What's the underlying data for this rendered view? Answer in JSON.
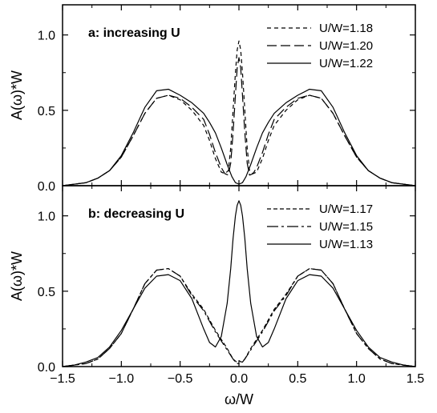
{
  "chart_data": [
    {
      "type": "line",
      "panel_label": "a: increasing U",
      "ylabel": "A(ω)*W",
      "xlabel": "",
      "xlim": [
        -1.5,
        1.5
      ],
      "ylim": [
        0.0,
        1.2
      ],
      "x_ticks": [
        "−1.5",
        "−1.0",
        "−0.5",
        "0.0",
        "0.5",
        "1.0",
        "1.5"
      ],
      "y_ticks": [
        "0.0",
        "0.5",
        "1.0"
      ],
      "grid": false,
      "legend_position": "top-right",
      "series": [
        {
          "name": "U/W=1.18",
          "dash": "5,4",
          "x": [
            -1.5,
            -1.4,
            -1.3,
            -1.2,
            -1.1,
            -1.0,
            -0.9,
            -0.8,
            -0.7,
            -0.6,
            -0.5,
            -0.4,
            -0.3,
            -0.25,
            -0.2,
            -0.15,
            -0.12,
            -0.09,
            -0.07,
            -0.05,
            -0.03,
            -0.015,
            0.0,
            0.015,
            0.03,
            0.05,
            0.07,
            0.09,
            0.12,
            0.15,
            0.2,
            0.25,
            0.3,
            0.4,
            0.5,
            0.6,
            0.7,
            0.8,
            0.9,
            1.0,
            1.1,
            1.2,
            1.3,
            1.4,
            1.5
          ],
          "y": [
            0.0,
            0.01,
            0.02,
            0.05,
            0.1,
            0.19,
            0.33,
            0.48,
            0.58,
            0.6,
            0.57,
            0.5,
            0.4,
            0.3,
            0.18,
            0.09,
            0.08,
            0.1,
            0.25,
            0.5,
            0.75,
            0.9,
            0.96,
            0.9,
            0.75,
            0.5,
            0.25,
            0.1,
            0.08,
            0.09,
            0.18,
            0.3,
            0.4,
            0.5,
            0.57,
            0.6,
            0.58,
            0.48,
            0.33,
            0.19,
            0.1,
            0.05,
            0.02,
            0.01,
            0.0
          ]
        },
        {
          "name": "U/W=1.20",
          "dash": "12,5",
          "x": [
            -1.5,
            -1.4,
            -1.3,
            -1.2,
            -1.1,
            -1.0,
            -0.9,
            -0.8,
            -0.7,
            -0.6,
            -0.5,
            -0.4,
            -0.3,
            -0.25,
            -0.2,
            -0.15,
            -0.12,
            -0.09,
            -0.07,
            -0.05,
            -0.03,
            -0.015,
            0.0,
            0.015,
            0.03,
            0.05,
            0.07,
            0.09,
            0.12,
            0.15,
            0.2,
            0.25,
            0.3,
            0.4,
            0.5,
            0.6,
            0.7,
            0.8,
            0.9,
            1.0,
            1.1,
            1.2,
            1.3,
            1.4,
            1.5
          ],
          "y": [
            0.0,
            0.01,
            0.02,
            0.05,
            0.1,
            0.19,
            0.33,
            0.48,
            0.58,
            0.6,
            0.58,
            0.52,
            0.44,
            0.34,
            0.22,
            0.12,
            0.08,
            0.07,
            0.15,
            0.35,
            0.6,
            0.78,
            0.85,
            0.78,
            0.6,
            0.35,
            0.15,
            0.07,
            0.08,
            0.12,
            0.22,
            0.34,
            0.44,
            0.52,
            0.58,
            0.6,
            0.58,
            0.48,
            0.33,
            0.19,
            0.1,
            0.05,
            0.02,
            0.01,
            0.0
          ]
        },
        {
          "name": "U/W=1.22",
          "dash": "",
          "x": [
            -1.5,
            -1.4,
            -1.3,
            -1.2,
            -1.1,
            -1.0,
            -0.9,
            -0.8,
            -0.7,
            -0.6,
            -0.5,
            -0.4,
            -0.3,
            -0.25,
            -0.2,
            -0.15,
            -0.1,
            -0.06,
            -0.03,
            0.0,
            0.03,
            0.06,
            0.1,
            0.15,
            0.2,
            0.25,
            0.3,
            0.4,
            0.5,
            0.6,
            0.7,
            0.8,
            0.9,
            1.0,
            1.1,
            1.2,
            1.3,
            1.4,
            1.5
          ],
          "y": [
            0.0,
            0.01,
            0.02,
            0.05,
            0.1,
            0.2,
            0.35,
            0.52,
            0.63,
            0.64,
            0.6,
            0.55,
            0.48,
            0.42,
            0.35,
            0.25,
            0.14,
            0.06,
            0.02,
            0.01,
            0.02,
            0.06,
            0.14,
            0.25,
            0.35,
            0.42,
            0.48,
            0.55,
            0.6,
            0.64,
            0.63,
            0.52,
            0.35,
            0.2,
            0.1,
            0.05,
            0.02,
            0.01,
            0.0
          ]
        }
      ]
    },
    {
      "type": "line",
      "panel_label": "b: decreasing U",
      "ylabel": "A(ω)*W",
      "xlabel": "ω/W",
      "xlim": [
        -1.5,
        1.5
      ],
      "ylim": [
        0.0,
        1.2
      ],
      "x_ticks": [
        "−1.5",
        "−1.0",
        "−0.5",
        "0.0",
        "0.5",
        "1.0",
        "1.5"
      ],
      "y_ticks": [
        "0.0",
        "0.5",
        "1.0"
      ],
      "grid": false,
      "legend_position": "top-right",
      "series": [
        {
          "name": "U/W=1.17",
          "dash": "5,3",
          "x": [
            -1.5,
            -1.4,
            -1.3,
            -1.2,
            -1.1,
            -1.0,
            -0.9,
            -0.8,
            -0.7,
            -0.6,
            -0.5,
            -0.4,
            -0.3,
            -0.2,
            -0.1,
            -0.05,
            -0.02,
            0.0,
            0.02,
            0.05,
            0.1,
            0.2,
            0.3,
            0.4,
            0.5,
            0.6,
            0.7,
            0.8,
            0.9,
            1.0,
            1.1,
            1.2,
            1.3,
            1.4,
            1.5
          ],
          "y": [
            0.0,
            0.01,
            0.02,
            0.05,
            0.12,
            0.22,
            0.38,
            0.55,
            0.64,
            0.65,
            0.6,
            0.48,
            0.38,
            0.24,
            0.12,
            0.05,
            0.03,
            0.04,
            0.03,
            0.05,
            0.12,
            0.24,
            0.38,
            0.48,
            0.6,
            0.65,
            0.64,
            0.55,
            0.38,
            0.22,
            0.12,
            0.05,
            0.02,
            0.01,
            0.0
          ]
        },
        {
          "name": "U/W=1.15",
          "dash": "14,4,3,4",
          "x": [
            -1.5,
            -1.4,
            -1.3,
            -1.2,
            -1.1,
            -1.0,
            -0.9,
            -0.8,
            -0.7,
            -0.6,
            -0.5,
            -0.4,
            -0.3,
            -0.2,
            -0.1,
            -0.05,
            -0.02,
            0.0,
            0.02,
            0.05,
            0.1,
            0.2,
            0.3,
            0.4,
            0.5,
            0.6,
            0.7,
            0.8,
            0.9,
            1.0,
            1.1,
            1.2,
            1.3,
            1.4,
            1.5
          ],
          "y": [
            0.0,
            0.01,
            0.02,
            0.05,
            0.12,
            0.22,
            0.38,
            0.55,
            0.64,
            0.65,
            0.6,
            0.47,
            0.37,
            0.23,
            0.11,
            0.05,
            0.02,
            0.02,
            0.02,
            0.05,
            0.11,
            0.23,
            0.37,
            0.47,
            0.6,
            0.65,
            0.64,
            0.55,
            0.38,
            0.22,
            0.12,
            0.05,
            0.02,
            0.01,
            0.0
          ]
        },
        {
          "name": "U/W=1.13",
          "dash": "",
          "x": [
            -1.5,
            -1.4,
            -1.3,
            -1.2,
            -1.1,
            -1.0,
            -0.9,
            -0.8,
            -0.7,
            -0.6,
            -0.5,
            -0.4,
            -0.3,
            -0.25,
            -0.2,
            -0.15,
            -0.1,
            -0.07,
            -0.05,
            -0.03,
            -0.015,
            0.0,
            0.015,
            0.03,
            0.05,
            0.07,
            0.1,
            0.15,
            0.2,
            0.25,
            0.3,
            0.4,
            0.5,
            0.6,
            0.7,
            0.8,
            0.9,
            1.0,
            1.1,
            1.2,
            1.3,
            1.4,
            1.5
          ],
          "y": [
            0.0,
            0.01,
            0.03,
            0.06,
            0.13,
            0.24,
            0.38,
            0.52,
            0.6,
            0.61,
            0.57,
            0.45,
            0.25,
            0.16,
            0.13,
            0.2,
            0.42,
            0.65,
            0.85,
            1.0,
            1.07,
            1.1,
            1.07,
            1.0,
            0.85,
            0.65,
            0.42,
            0.2,
            0.13,
            0.16,
            0.25,
            0.45,
            0.57,
            0.61,
            0.6,
            0.52,
            0.38,
            0.24,
            0.13,
            0.06,
            0.03,
            0.01,
            0.0
          ]
        }
      ]
    }
  ]
}
